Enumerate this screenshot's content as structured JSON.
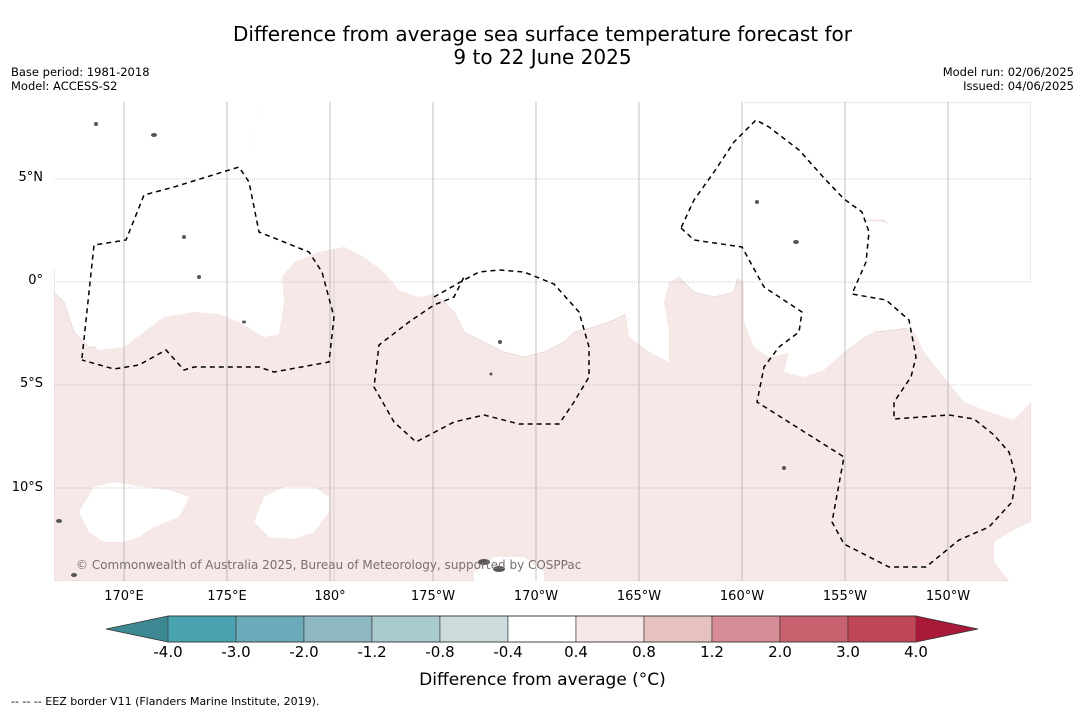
{
  "title": {
    "line1": "Difference from average sea surface temperature forecast for",
    "line2": "9 to 22 June 2025"
  },
  "meta": {
    "base_period": "Base period: 1981-2018",
    "model": "Model: ACCESS-S2",
    "model_run": "Model run: 02/06/2025",
    "issued": "Issued: 04/06/2025"
  },
  "map": {
    "latitude_labels": [
      "5°N",
      "0°",
      "5°S",
      "10°S"
    ],
    "longitude_labels": [
      "170°E",
      "175°E",
      "180°",
      "175°W",
      "170°W",
      "165°W",
      "160°W",
      "155°W",
      "150°W"
    ],
    "background_color": "#ffffff",
    "anomaly_fill_color": "#f5e8e6",
    "land_color": "#555555",
    "copyright": "© Commonwealth of Australia 2025, Bureau of Meteorology, supported by COSPPac"
  },
  "colorbar": {
    "label": "Difference from average (°C)",
    "tick_labels": [
      "-4.0",
      "-3.0",
      "-2.0",
      "-1.2",
      "-0.8",
      "-0.4",
      "0.4",
      "0.8",
      "1.2",
      "2.0",
      "3.0",
      "4.0"
    ],
    "colors": [
      "#3d8893",
      "#4aa3b1",
      "#6baab8",
      "#8db8c2",
      "#aacbce",
      "#ccdcdc",
      "#ffffff",
      "#f6e8e6",
      "#e5c2be",
      "#d68d95",
      "#c9626f",
      "#be4657",
      "#a81a38"
    ]
  },
  "footnote": "--  --  -- EEZ border V11 (Flanders Marine Institute, 2019)."
}
